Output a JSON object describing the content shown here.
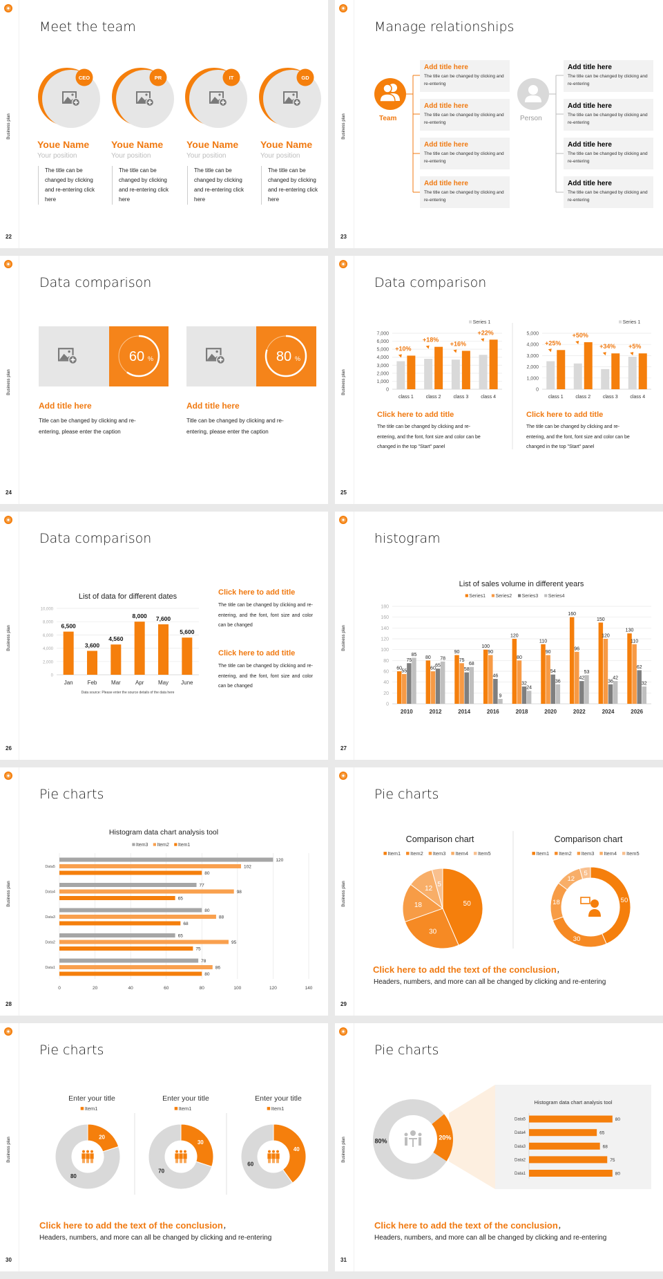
{
  "deck": {
    "side_label": "Business plan",
    "accent": "#f57f0c"
  },
  "slides": {
    "s22": {
      "page": "22",
      "title": "Meet the team",
      "members": [
        {
          "badge": "CEO",
          "name": "Youe Name",
          "position": "Your position",
          "desc": "The title can be changed by clicking and re-entering click here"
        },
        {
          "badge": "PR",
          "name": "Youe Name",
          "position": "Your position",
          "desc": "The title can be changed by clicking and re-entering click here"
        },
        {
          "badge": "IT",
          "name": "Youe Name",
          "position": "Your position",
          "desc": "The title can be changed by clicking and re-entering click here"
        },
        {
          "badge": "GD",
          "name": "Youe Name",
          "position": "Your position",
          "desc": "The title can be changed by clicking and re-entering click here"
        }
      ]
    },
    "s23": {
      "page": "23",
      "title": "Manage relationships",
      "team_label": "Team",
      "person_label": "Person",
      "team_boxes": [
        {
          "title": "Add title here",
          "body": "The title can be changed by clicking and re-entering"
        },
        {
          "title": "Add title here",
          "body": "The title can be changed by clicking and re-entering"
        },
        {
          "title": "Add title here",
          "body": "The title can be changed by clicking and re-entering"
        },
        {
          "title": "Add title here",
          "body": "The title can be changed by clicking and re-entering"
        }
      ],
      "person_boxes": [
        {
          "title": "Add title here",
          "body": "The title can be changed by clicking and re-entering"
        },
        {
          "title": "Add title here",
          "body": "The title can be changed by clicking and re-entering"
        },
        {
          "title": "Add title here",
          "body": "The title can be changed by clicking and re-entering"
        },
        {
          "title": "Add title here",
          "body": "The title can be changed by clicking and re-entering"
        }
      ]
    },
    "s24": {
      "page": "24",
      "title": "Data comparison",
      "cards": [
        {
          "percent": 60,
          "value": "60",
          "unit": "%",
          "heading": "Add title here",
          "body": "Title can be changed by clicking and re-entering, please enter the caption"
        },
        {
          "percent": 80,
          "value": "80",
          "unit": "%",
          "heading": "Add title here",
          "body": "Title can be changed by clicking and re-entering, please enter the caption"
        }
      ]
    },
    "s25": {
      "page": "25",
      "title": "Data comparison",
      "blocks": [
        {
          "heading": "Click here to add title",
          "body": "The title can be changed by clicking and re-entering, and the font, font size and color can be changed in the top \"Start\" panel"
        },
        {
          "heading": "Click here to add title",
          "body": "The title can be changed by clicking and re-entering, and the font, font size and color can be changed in the top \"Start\" panel"
        }
      ]
    },
    "s26": {
      "page": "26",
      "title": "Data comparison",
      "blocks": [
        {
          "heading": "Click here to add title",
          "body": "The title can be changed by clicking and re-entering, and the font, font size and color can be changed"
        },
        {
          "heading": "Click here to add title",
          "body": "The title can be changed by clicking and re-entering, and the font, font size and color can be changed"
        }
      ]
    },
    "s27": {
      "page": "27",
      "title": "histogram"
    },
    "s28": {
      "page": "28",
      "title": "Pie charts"
    },
    "s29": {
      "page": "29",
      "title": "Pie charts",
      "conclusion": "Click here to add the text of the conclusion",
      "comma": "，",
      "subtext": "Headers, numbers, and more can all be changed by clicking and re-entering"
    },
    "s30": {
      "page": "30",
      "title": "Pie charts",
      "conclusion": "Click here to add the text of the conclusion",
      "comma": "，",
      "subtext": "Headers, numbers, and more can all be changed by clicking and re-entering"
    },
    "s31": {
      "page": "31",
      "title": "Pie charts",
      "conclusion": "Click here to add the text of the conclusion",
      "comma": "，",
      "subtext": "Headers, numbers, and more can all be changed by clicking and re-entering"
    }
  },
  "chart_data": [
    {
      "type": "bar",
      "categories": [
        "class 1",
        "class 2",
        "class 3",
        "class 4"
      ],
      "ylim": [
        0,
        7000
      ],
      "yticks": [
        "0",
        "1,000",
        "2,000",
        "3,000",
        "4,000",
        "5,000",
        "6,000",
        "7,000"
      ],
      "legend": [
        "Series 1"
      ],
      "series": [
        {
          "name": "Series 1",
          "values": [
            3500,
            3800,
            3700,
            4300
          ],
          "color": "#d9d9d9"
        },
        {
          "values": [
            4200,
            5300,
            4800,
            6200
          ],
          "color": "#f57f0c"
        }
      ],
      "annotations": [
        "+10%",
        "+18%",
        "+16%",
        "+22%"
      ],
      "grid": true
    },
    {
      "type": "bar",
      "categories": [
        "class 1",
        "class 2",
        "class 3",
        "class 4"
      ],
      "ylim": [
        0,
        5000
      ],
      "yticks": [
        "0",
        "1,000",
        "2,000",
        "3,000",
        "4,000",
        "5,000"
      ],
      "legend": [
        "Series 1"
      ],
      "series": [
        {
          "name": "Series 1",
          "values": [
            2500,
            2300,
            1800,
            2900
          ],
          "color": "#d9d9d9"
        },
        {
          "values": [
            3500,
            4200,
            3200,
            3200
          ],
          "color": "#f57f0c"
        }
      ],
      "annotations": [
        "+25%",
        "+50%",
        "+34%",
        "+5%"
      ],
      "grid": true
    },
    {
      "type": "bar",
      "title": "List of data for different dates",
      "categories": [
        "Jan",
        "Feb",
        "Mar",
        "Apr",
        "May",
        "June"
      ],
      "values": [
        6500,
        3600,
        4560,
        8000,
        7600,
        5600
      ],
      "data_labels": [
        "6,500",
        "3,600",
        "4,560",
        "8,000",
        "7,600",
        "5,600"
      ],
      "ylim": [
        0,
        10000
      ],
      "yticks": [
        "0",
        "2,000",
        "4,000",
        "6,000",
        "8,000",
        "10,000"
      ],
      "note": "Data source: Please enter the source details of the data here",
      "color": "#f57f0c",
      "grid": true
    },
    {
      "type": "bar",
      "title": "List of sales volume in different years",
      "categories": [
        "2010",
        "2012",
        "2014",
        "2016",
        "2018",
        "2020",
        "2022",
        "2024",
        "2026"
      ],
      "ylim": [
        0,
        180
      ],
      "yticks": [
        "0",
        "20",
        "40",
        "60",
        "80",
        "100",
        "120",
        "140",
        "160",
        "180"
      ],
      "legend_position": "top",
      "series": [
        {
          "name": "Series1",
          "values": [
            60,
            80,
            90,
            100,
            120,
            110,
            160,
            150,
            130
          ],
          "color": "#f57f0c"
        },
        {
          "name": "Series2",
          "values": [
            55,
            60,
            75,
            90,
            80,
            90,
            96,
            120,
            110
          ],
          "color": "#f79a45"
        },
        {
          "name": "Series3",
          "values": [
            75,
            65,
            58,
            46,
            32,
            54,
            42,
            36,
            62
          ],
          "color": "#7f7f7f"
        },
        {
          "name": "Series4",
          "values": [
            85,
            78,
            68,
            9,
            24,
            36,
            53,
            42,
            32
          ],
          "color": "#bfbfbf"
        }
      ],
      "grid": true
    },
    {
      "type": "bar",
      "orientation": "horizontal",
      "title": "Histogram data chart analysis tool",
      "categories": [
        "Data1",
        "Data2",
        "Data3",
        "Data4",
        "Data5"
      ],
      "xlim": [
        0,
        140
      ],
      "xticks": [
        "0",
        "20",
        "40",
        "60",
        "80",
        "100",
        "120",
        "140"
      ],
      "legend": [
        "Item3",
        "Item2",
        "Item1"
      ],
      "series": [
        {
          "name": "Item1",
          "values": [
            80,
            75,
            68,
            65,
            80
          ],
          "color": "#f57f0c"
        },
        {
          "name": "Item2",
          "values": [
            86,
            95,
            88,
            98,
            102
          ],
          "color": "#f9a04e"
        },
        {
          "name": "Item3",
          "values": [
            78,
            65,
            80,
            77,
            120
          ],
          "color": "#a6a6a6"
        }
      ],
      "grid": true
    },
    {
      "type": "pie",
      "title": "Comparison chart",
      "labels": [
        "Item1",
        "Item2",
        "Item3",
        "Item4",
        "Item5"
      ],
      "values": [
        50,
        30,
        18,
        12,
        5
      ],
      "value_labels": [
        "50",
        "30",
        "18",
        "12",
        "5"
      ],
      "colors": [
        "#f57f0c",
        "#f68a24",
        "#f79c46",
        "#f8ae68",
        "#f9c08e"
      ]
    },
    {
      "type": "pie",
      "variant": "donut",
      "title": "Comparison chart",
      "labels": [
        "Item1",
        "Item2",
        "Item3",
        "Item4",
        "Item5"
      ],
      "values": [
        50,
        30,
        18,
        12,
        5
      ],
      "value_labels": [
        "50",
        "30",
        "18",
        "12",
        "5"
      ],
      "colors": [
        "#f57f0c",
        "#f68a24",
        "#f79c46",
        "#f8ae68",
        "#f9c08e"
      ]
    },
    {
      "type": "pie",
      "variant": "donut",
      "title": "Enter your title",
      "legend": [
        "Item1"
      ],
      "values": [
        20,
        80
      ],
      "value_labels": [
        "20",
        "80"
      ],
      "colors": [
        "#f57f0c",
        "#d9d9d9"
      ]
    },
    {
      "type": "pie",
      "variant": "donut",
      "title": "Enter your title",
      "legend": [
        "Item1"
      ],
      "values": [
        30,
        70
      ],
      "value_labels": [
        "30",
        "70"
      ],
      "colors": [
        "#f57f0c",
        "#d9d9d9"
      ]
    },
    {
      "type": "pie",
      "variant": "donut",
      "title": "Enter your title",
      "legend": [
        "Item1"
      ],
      "values": [
        40,
        60
      ],
      "value_labels": [
        "40",
        "60"
      ],
      "colors": [
        "#f57f0c",
        "#d9d9d9"
      ]
    },
    {
      "type": "pie",
      "variant": "donut",
      "values": [
        20,
        80
      ],
      "value_labels": [
        "20%",
        "80%"
      ],
      "colors": [
        "#f57f0c",
        "#d9d9d9"
      ]
    },
    {
      "type": "bar",
      "orientation": "horizontal",
      "title": "Histogram data chart analysis tool",
      "categories": [
        "Data1",
        "Data2",
        "Data3",
        "Data4",
        "Data5"
      ],
      "values": [
        80,
        75,
        68,
        65,
        80
      ],
      "data_labels": [
        "80",
        "75",
        "68",
        "65",
        "80"
      ],
      "color": "#f57f0c"
    }
  ]
}
